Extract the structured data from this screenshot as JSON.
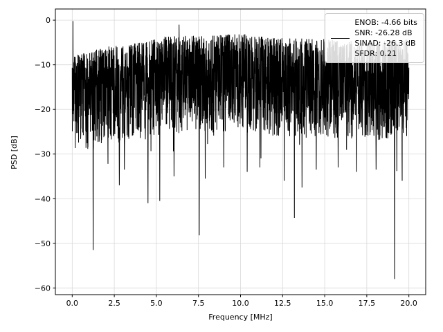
{
  "figure": {
    "background": "#ffffff",
    "grid_color": "#d9d9d9",
    "spine_color": "#000000",
    "trace_color": "#000000"
  },
  "chart_data": {
    "type": "line",
    "title": "",
    "xlabel": "Frequency [MHz]",
    "ylabel": "PSD [dB]",
    "xlim": [
      -1,
      21
    ],
    "ylim": [
      -61.5,
      2.5
    ],
    "grid": true,
    "xticks": [
      0.0,
      2.5,
      5.0,
      7.5,
      10.0,
      12.5,
      15.0,
      17.5,
      20.0
    ],
    "xtick_labels": [
      "0.0",
      "2.5",
      "5.0",
      "7.5",
      "10.0",
      "12.5",
      "15.0",
      "17.5",
      "20.0"
    ],
    "yticks": [
      0,
      -10,
      -20,
      -30,
      -40,
      -50,
      -60
    ],
    "ytick_labels": [
      "0",
      "−10",
      "−20",
      "−30",
      "−40",
      "−50",
      "−60"
    ],
    "legend": {
      "position": "upper right",
      "lines": [
        "ENOB: -4.66 bits",
        "SNR: -26.28 dB",
        "SINAD: -26.3 dB",
        "SFDR: 0.21"
      ]
    },
    "series": [
      {
        "name": "psd-noise-floor",
        "color": "#000000",
        "description": "dense wideband noise trace spanning 0 to 20 MHz, bulk between about -3 dB and -27 dB",
        "x_range": [
          0,
          20
        ],
        "noise_band_depth": 22,
        "top_envelope": [
          [
            0,
            -8.0
          ],
          [
            1,
            -7.0
          ],
          [
            2,
            -6.0
          ],
          [
            4,
            -5.0
          ],
          [
            6,
            -3.5
          ],
          [
            8,
            -3.5
          ],
          [
            10,
            -3.0
          ],
          [
            12,
            -4.0
          ],
          [
            14,
            -4.0
          ],
          [
            16,
            -4.5
          ],
          [
            18,
            -5.0
          ],
          [
            20,
            -4.0
          ]
        ],
        "peaks": [
          [
            0.05,
            -0.2
          ],
          [
            6.35,
            -1.0
          ]
        ],
        "dips": [
          [
            1.25,
            -51.5
          ],
          [
            2.8,
            -37.0
          ],
          [
            3.1,
            -33.5
          ],
          [
            4.5,
            -41.0
          ],
          [
            5.2,
            -40.5
          ],
          [
            6.05,
            -35.0
          ],
          [
            7.55,
            -48.2
          ],
          [
            7.9,
            -35.5
          ],
          [
            9.0,
            -33.0
          ],
          [
            10.4,
            -34.0
          ],
          [
            11.15,
            -33.0
          ],
          [
            12.6,
            -36.0
          ],
          [
            13.2,
            -44.3
          ],
          [
            13.65,
            -37.5
          ],
          [
            14.5,
            -33.5
          ],
          [
            15.8,
            -33.0
          ],
          [
            16.9,
            -34.0
          ],
          [
            18.05,
            -33.5
          ],
          [
            19.15,
            -58.0
          ],
          [
            19.6,
            -36.0
          ]
        ]
      }
    ]
  }
}
